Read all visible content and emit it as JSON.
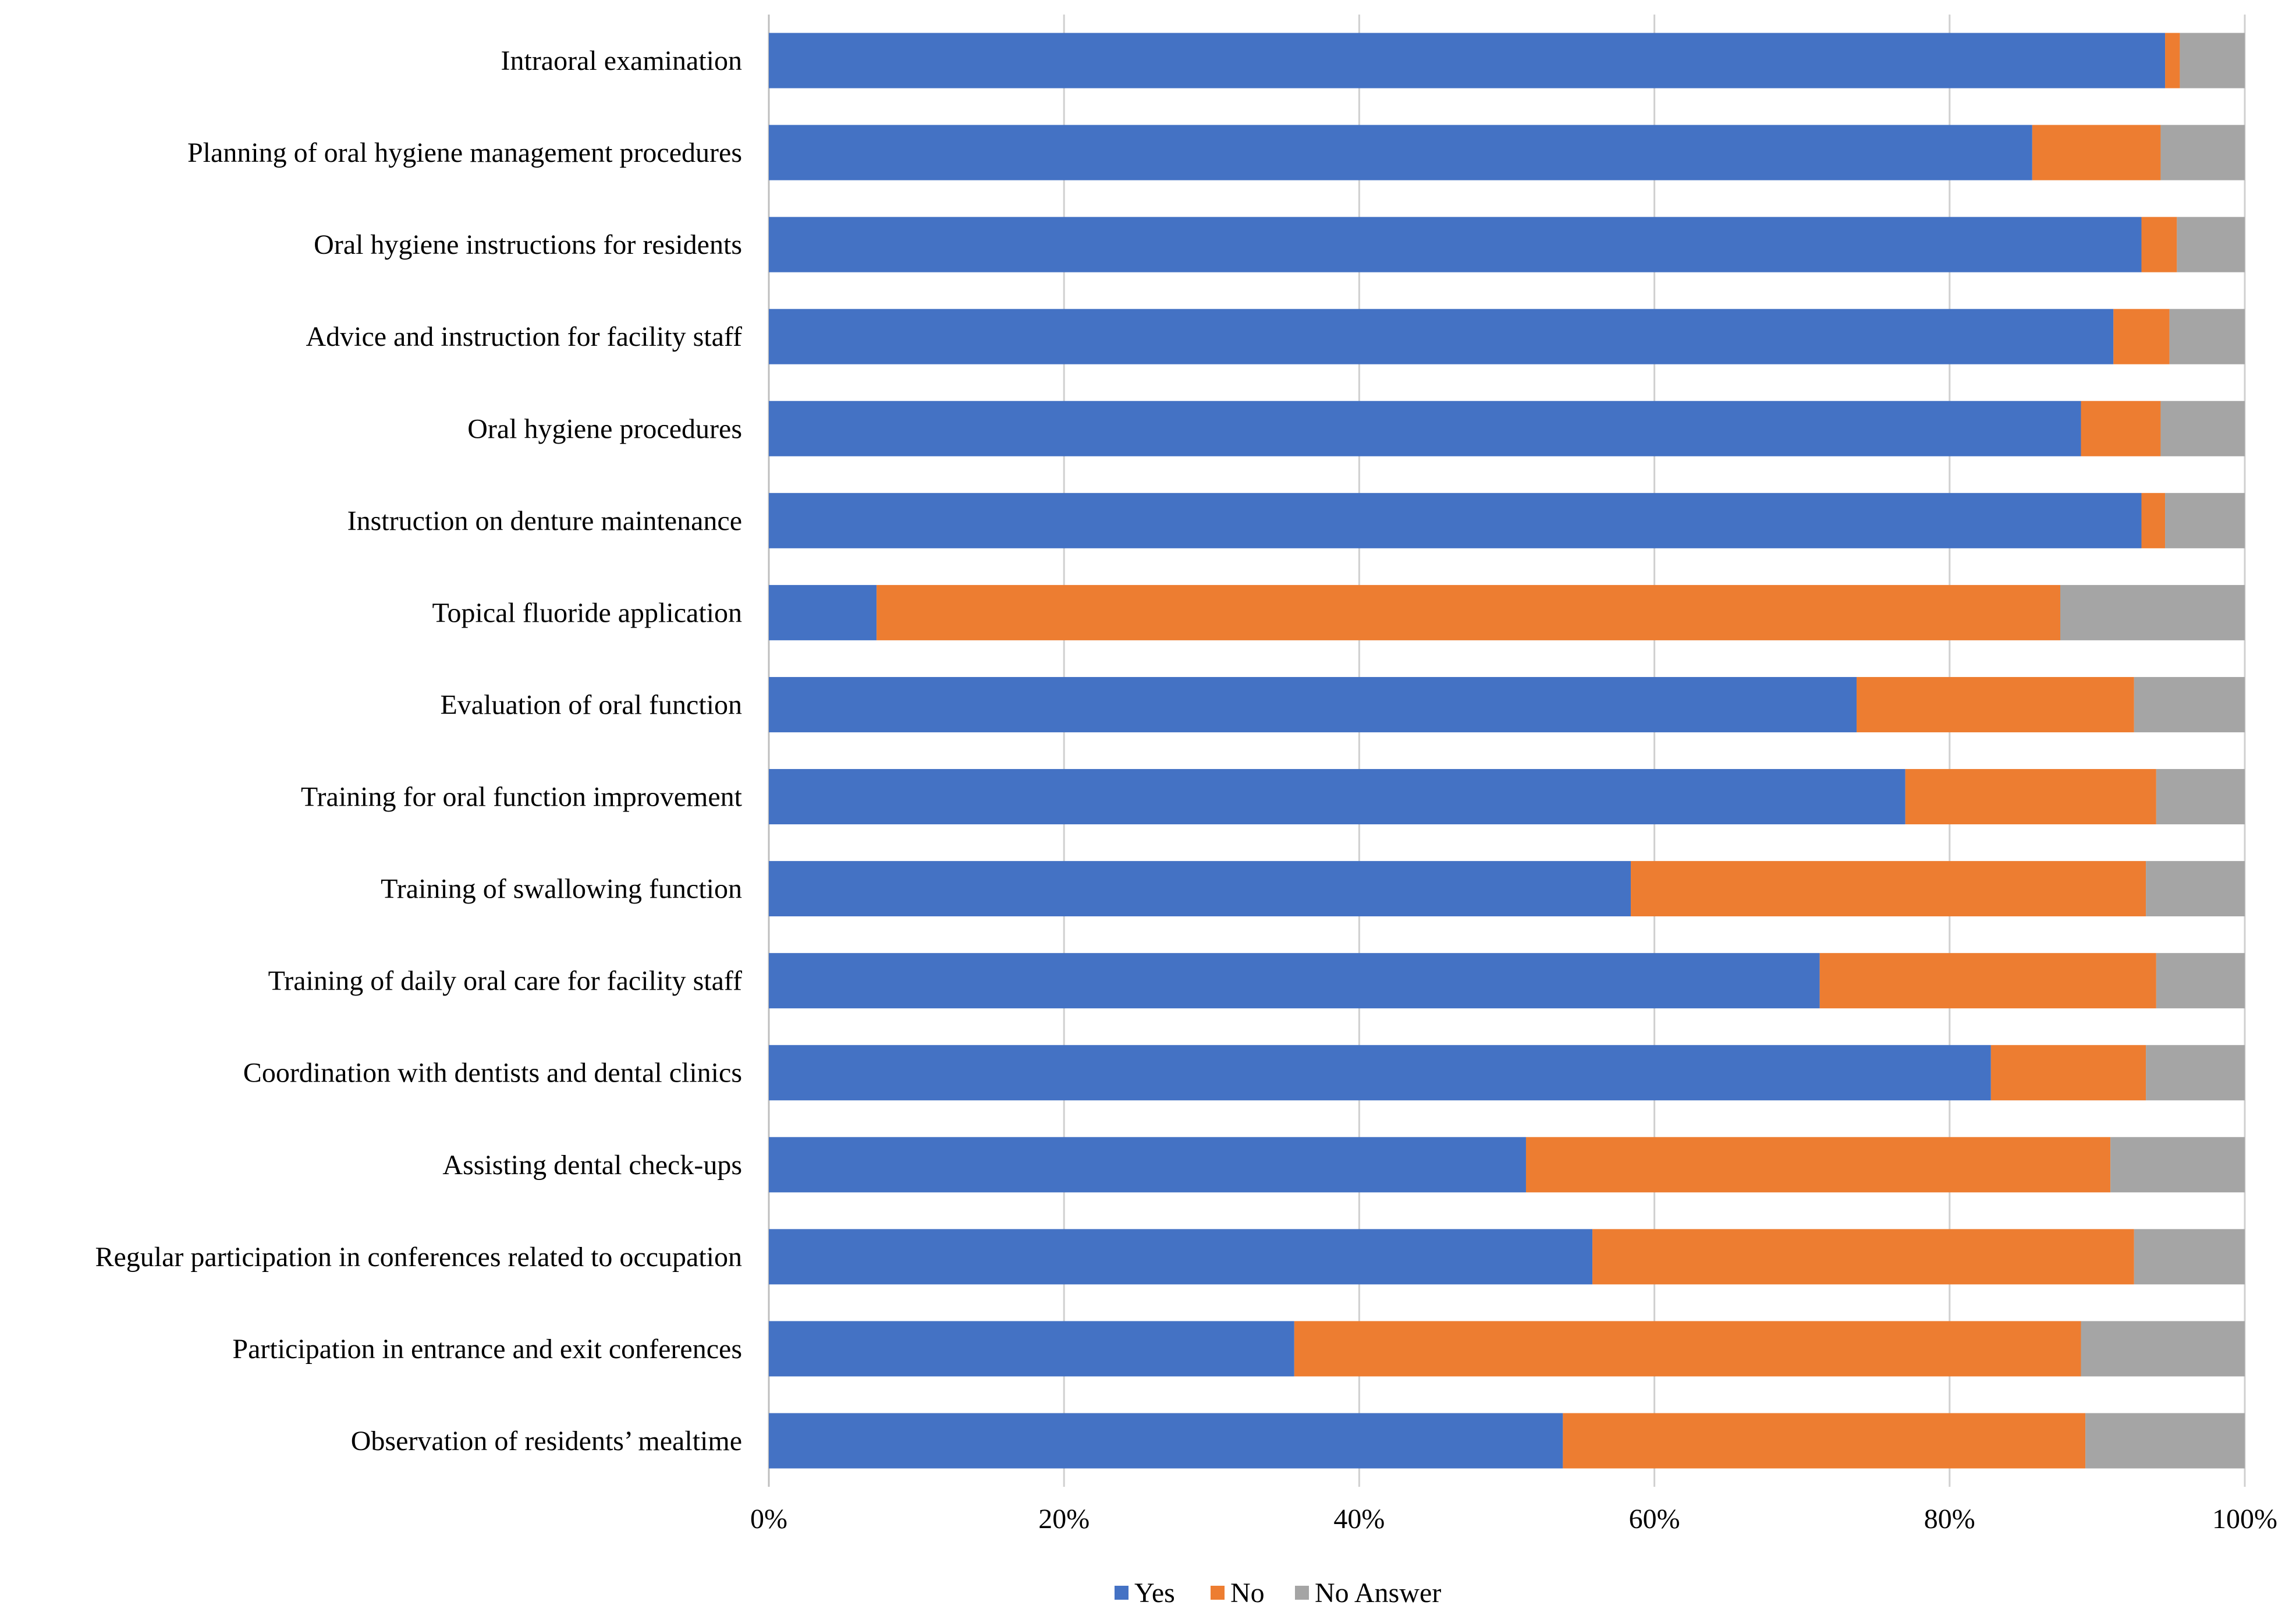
{
  "chart_data": {
    "type": "bar",
    "orientation": "horizontal",
    "stacked": "percent",
    "title": "",
    "xlabel": "",
    "ylabel": "",
    "xlim": [
      0,
      100
    ],
    "x_ticks": [
      "0%",
      "20%",
      "40%",
      "60%",
      "80%",
      "100%"
    ],
    "grid": true,
    "legend_position": "bottom",
    "categories": [
      "Intraoral examination",
      "Planning of oral hygiene management procedures",
      "Oral hygiene instructions for residents",
      "Advice and instruction for facility staff",
      "Oral hygiene procedures",
      "Instruction on denture maintenance",
      "Topical fluoride application",
      "Evaluation of oral function",
      "Training for oral function improvement",
      "Training of swallowing function",
      "Training of daily oral care for facility staff",
      "Coordination with dentists and dental clinics",
      "Assisting dental check-ups",
      "Regular participation in conferences related to occupation",
      "Participation in entrance and exit conferences",
      "Observation of residents’ mealtime"
    ],
    "series": [
      {
        "name": "Yes",
        "color": "#4472C4",
        "values": [
          94.6,
          85.6,
          93.0,
          91.1,
          88.9,
          93.0,
          7.3,
          73.7,
          77.0,
          58.4,
          71.2,
          82.8,
          51.3,
          55.8,
          35.6,
          53.8
        ]
      },
      {
        "name": "No",
        "color": "#ED7D31",
        "values": [
          1.0,
          8.7,
          2.4,
          3.8,
          5.4,
          1.6,
          80.2,
          18.8,
          17.0,
          34.9,
          22.8,
          10.5,
          39.6,
          36.7,
          53.3,
          35.4
        ]
      },
      {
        "name": "No Answer",
        "color": "#A5A5A5",
        "values": [
          4.4,
          5.7,
          4.6,
          5.1,
          5.7,
          5.4,
          12.5,
          7.5,
          6.0,
          6.7,
          6.0,
          6.7,
          9.1,
          7.5,
          11.1,
          10.8
        ]
      }
    ]
  }
}
